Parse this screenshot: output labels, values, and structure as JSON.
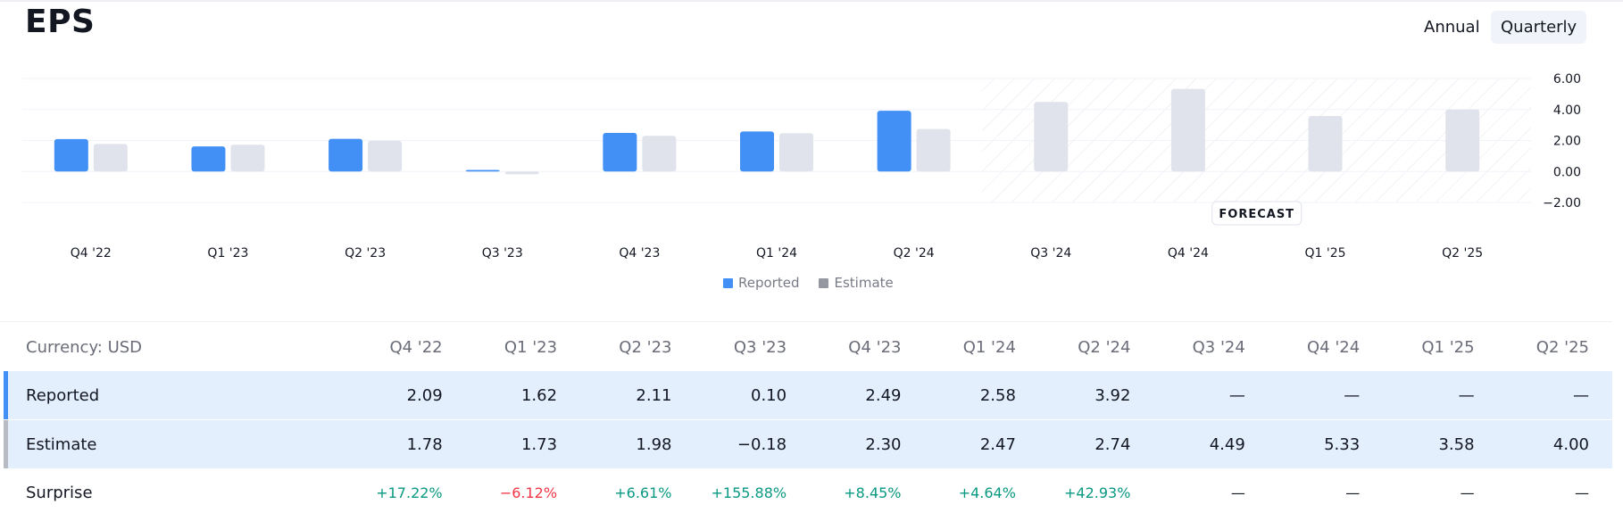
{
  "header": {
    "title": "EPS",
    "period_tabs": [
      {
        "label": "Annual",
        "active": false
      },
      {
        "label": "Quarterly",
        "active": true
      }
    ]
  },
  "chart_data": {
    "type": "bar",
    "categories": [
      "Q4 '22",
      "Q1 '23",
      "Q2 '23",
      "Q3 '23",
      "Q4 '23",
      "Q1 '24",
      "Q2 '24",
      "Q3 '24",
      "Q4 '24",
      "Q1 '25",
      "Q2 '25"
    ],
    "series": [
      {
        "name": "Reported",
        "color": "#4290f6",
        "values": [
          2.09,
          1.62,
          2.11,
          0.1,
          2.49,
          2.58,
          3.92,
          null,
          null,
          null,
          null
        ]
      },
      {
        "name": "Estimate",
        "color": "#e0e3eb",
        "values": [
          1.78,
          1.73,
          1.98,
          -0.18,
          2.3,
          2.47,
          2.74,
          4.49,
          5.33,
          3.58,
          4.0
        ]
      }
    ],
    "yticks": [
      "6.00",
      "4.00",
      "2.00",
      "0.00",
      "−2.00"
    ],
    "ylim": [
      -2,
      6
    ],
    "forecast_label": "FORECAST",
    "forecast_start_index": 7,
    "grid": true,
    "legend_position": "bottom-center"
  },
  "table": {
    "currency_label": "Currency: USD",
    "columns": [
      "Q4 '22",
      "Q1 '23",
      "Q2 '23",
      "Q3 '23",
      "Q4 '23",
      "Q1 '24",
      "Q2 '24",
      "Q3 '24",
      "Q4 '24",
      "Q1 '25",
      "Q2 '25"
    ],
    "rows": [
      {
        "label": "Reported",
        "values": [
          "2.09",
          "1.62",
          "2.11",
          "0.10",
          "2.49",
          "2.58",
          "3.92",
          "—",
          "—",
          "—",
          "—"
        ]
      },
      {
        "label": "Estimate",
        "values": [
          "1.78",
          "1.73",
          "1.98",
          "−0.18",
          "2.30",
          "2.47",
          "2.74",
          "4.49",
          "5.33",
          "3.58",
          "4.00"
        ]
      },
      {
        "label": "Surprise",
        "values": [
          "+17.22%",
          "−6.12%",
          "+6.61%",
          "+155.88%",
          "+8.45%",
          "+4.64%",
          "+42.93%",
          "—",
          "—",
          "—",
          "—"
        ]
      }
    ]
  },
  "colors": {
    "positive": "#089981",
    "negative": "#f23645",
    "reported": "#4290f6",
    "estimate_legend": "#9598a1",
    "estimate_bar": "#e0e3eb"
  }
}
